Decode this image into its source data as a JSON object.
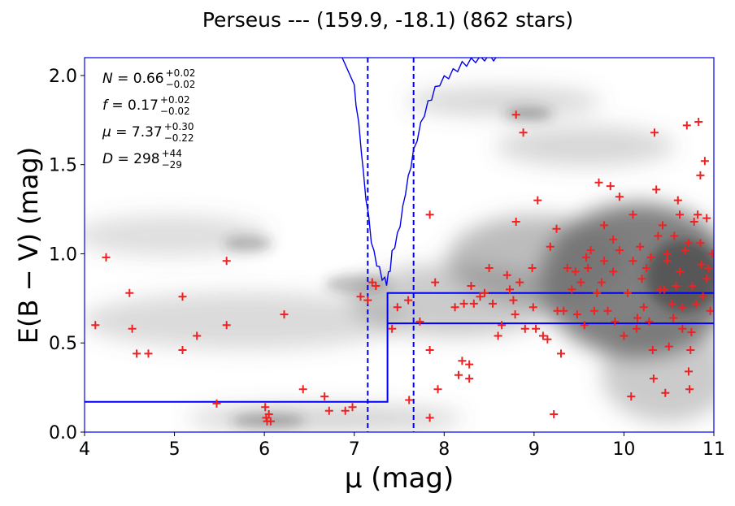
{
  "chart_data": {
    "type": "scatter",
    "title": "Perseus --- (159.9, -18.1) (862 stars)",
    "xlabel": "μ (mag)",
    "ylabel": "E(B − V) (mag)",
    "xlim": [
      4,
      11
    ],
    "ylim": [
      0,
      2.1
    ],
    "x_ticks": [
      "4",
      "5",
      "6",
      "7",
      "8",
      "9",
      "10",
      "11"
    ],
    "y_ticks": [
      "0.0",
      "0.5",
      "1.0",
      "1.5",
      "2.0"
    ],
    "annotations": [
      {
        "name": "N",
        "value": "0.66",
        "upper": "+0.02",
        "lower": "−0.02"
      },
      {
        "name": "f",
        "value": "0.17",
        "upper": "+0.02",
        "lower": "−0.02"
      },
      {
        "name": "μ",
        "value": "7.37",
        "upper": "+0.30",
        "lower": "−0.22"
      },
      {
        "name": "D",
        "value": "298",
        "upper": "+44",
        "lower": "−29"
      }
    ],
    "colors": {
      "points": "#ee2222",
      "model": "#0000ee",
      "background": "#666666"
    },
    "vertical_lines": [
      7.15,
      7.66
    ],
    "step_model": {
      "center": [
        [
          4.0,
          0.17
        ],
        [
          7.37,
          0.17
        ],
        [
          7.37,
          0.78
        ],
        [
          11.0,
          0.78
        ]
      ],
      "lower": [
        [
          7.37,
          0.61
        ],
        [
          11.0,
          0.61
        ]
      ],
      "jump_x": 7.37
    },
    "likelihood_curve": {
      "x": [
        7.0,
        7.02,
        7.05,
        7.08,
        7.1,
        7.13,
        7.16,
        7.19,
        7.22,
        7.25,
        7.28,
        7.31,
        7.34,
        7.36,
        7.38,
        7.4,
        7.42,
        7.45,
        7.48,
        7.51,
        7.54,
        7.57,
        7.6,
        7.63,
        7.66,
        7.7,
        7.74,
        7.78,
        7.82,
        7.86,
        7.9,
        7.95,
        8.0,
        8.05,
        8.1,
        8.15,
        8.2,
        8.25,
        8.3,
        8.35,
        8.4,
        8.45,
        8.5,
        8.55,
        8.6
      ],
      "y": [
        1.93,
        1.85,
        1.72,
        1.58,
        1.45,
        1.32,
        1.2,
        1.08,
        1.0,
        0.95,
        0.91,
        0.87,
        0.85,
        0.84,
        0.88,
        0.92,
        1.0,
        1.05,
        1.1,
        1.17,
        1.25,
        1.35,
        1.42,
        1.5,
        1.57,
        1.65,
        1.72,
        1.79,
        1.84,
        1.88,
        1.92,
        1.96,
        1.98,
        2.0,
        2.02,
        2.04,
        2.06,
        2.07,
        2.08,
        2.09,
        2.09,
        2.1,
        2.1,
        2.1,
        2.1
      ],
      "entry": [
        6.85,
        2.1
      ]
    },
    "points": [
      [
        4.12,
        0.6
      ],
      [
        4.24,
        0.98
      ],
      [
        4.5,
        0.78
      ],
      [
        4.53,
        0.58
      ],
      [
        4.58,
        0.44
      ],
      [
        4.71,
        0.44
      ],
      [
        5.09,
        0.76
      ],
      [
        5.09,
        0.46
      ],
      [
        5.25,
        0.54
      ],
      [
        5.47,
        0.16
      ],
      [
        5.58,
        0.96
      ],
      [
        5.58,
        0.6
      ],
      [
        6.01,
        0.14
      ],
      [
        6.02,
        0.08
      ],
      [
        6.03,
        0.06
      ],
      [
        6.05,
        0.1
      ],
      [
        6.07,
        0.06
      ],
      [
        6.22,
        0.66
      ],
      [
        6.43,
        0.24
      ],
      [
        6.67,
        0.2
      ],
      [
        6.72,
        0.12
      ],
      [
        6.9,
        0.12
      ],
      [
        6.98,
        0.14
      ],
      [
        7.07,
        0.76
      ],
      [
        7.15,
        0.74
      ],
      [
        7.2,
        0.84
      ],
      [
        7.24,
        0.82
      ],
      [
        7.42,
        0.58
      ],
      [
        7.48,
        0.7
      ],
      [
        7.6,
        0.74
      ],
      [
        7.61,
        0.18
      ],
      [
        7.73,
        0.62
      ],
      [
        7.84,
        1.22
      ],
      [
        7.84,
        0.46
      ],
      [
        7.84,
        0.08
      ],
      [
        7.9,
        0.84
      ],
      [
        7.93,
        0.24
      ],
      [
        8.12,
        0.7
      ],
      [
        8.16,
        0.32
      ],
      [
        8.2,
        0.4
      ],
      [
        8.22,
        0.72
      ],
      [
        8.28,
        0.38
      ],
      [
        8.28,
        0.3
      ],
      [
        8.3,
        0.82
      ],
      [
        8.33,
        0.72
      ],
      [
        8.4,
        0.76
      ],
      [
        8.45,
        0.78
      ],
      [
        8.5,
        0.92
      ],
      [
        8.54,
        0.72
      ],
      [
        8.6,
        0.54
      ],
      [
        8.64,
        0.6
      ],
      [
        8.7,
        0.88
      ],
      [
        8.73,
        0.8
      ],
      [
        8.77,
        0.74
      ],
      [
        8.79,
        0.66
      ],
      [
        8.8,
        1.78
      ],
      [
        8.8,
        1.18
      ],
      [
        8.84,
        0.84
      ],
      [
        8.88,
        1.68
      ],
      [
        8.9,
        0.58
      ],
      [
        8.98,
        0.92
      ],
      [
        8.99,
        0.7
      ],
      [
        9.02,
        0.58
      ],
      [
        9.04,
        1.3
      ],
      [
        9.1,
        0.54
      ],
      [
        9.15,
        0.52
      ],
      [
        9.18,
        1.04
      ],
      [
        9.22,
        0.1
      ],
      [
        9.25,
        1.14
      ],
      [
        9.26,
        0.68
      ],
      [
        9.3,
        0.44
      ],
      [
        9.33,
        0.68
      ],
      [
        9.37,
        0.92
      ],
      [
        9.42,
        0.8
      ],
      [
        9.48,
        0.66
      ],
      [
        9.52,
        0.84
      ],
      [
        9.56,
        0.6
      ],
      [
        9.6,
        0.92
      ],
      [
        9.63,
        1.02
      ],
      [
        9.67,
        0.68
      ],
      [
        9.7,
        0.78
      ],
      [
        9.72,
        1.4
      ],
      [
        9.75,
        0.84
      ],
      [
        9.78,
        0.96
      ],
      [
        9.82,
        0.68
      ],
      [
        9.85,
        1.38
      ],
      [
        9.88,
        1.08
      ],
      [
        9.9,
        0.62
      ],
      [
        9.95,
        1.32
      ],
      [
        10.0,
        0.54
      ],
      [
        10.04,
        0.78
      ],
      [
        10.08,
        0.2
      ],
      [
        10.1,
        1.22
      ],
      [
        10.14,
        0.58
      ],
      [
        10.18,
        1.04
      ],
      [
        10.22,
        0.7
      ],
      [
        10.25,
        0.92
      ],
      [
        10.28,
        0.62
      ],
      [
        10.32,
        0.46
      ],
      [
        10.33,
        0.3
      ],
      [
        10.34,
        1.68
      ],
      [
        10.36,
        1.36
      ],
      [
        10.4,
        0.8
      ],
      [
        10.43,
        1.16
      ],
      [
        10.46,
        0.22
      ],
      [
        10.48,
        0.96
      ],
      [
        10.5,
        0.48
      ],
      [
        10.53,
        0.72
      ],
      [
        10.56,
        1.1
      ],
      [
        10.58,
        0.82
      ],
      [
        10.6,
        1.3
      ],
      [
        10.62,
        0.9
      ],
      [
        10.65,
        0.58
      ],
      [
        10.68,
        1.02
      ],
      [
        10.7,
        1.72
      ],
      [
        10.72,
        0.34
      ],
      [
        10.73,
        0.24
      ],
      [
        10.74,
        0.46
      ],
      [
        10.76,
        0.82
      ],
      [
        10.78,
        1.18
      ],
      [
        10.8,
        0.72
      ],
      [
        10.83,
        1.74
      ],
      [
        10.85,
        1.44
      ],
      [
        10.86,
        0.94
      ],
      [
        10.88,
        0.76
      ],
      [
        10.9,
        1.52
      ],
      [
        10.92,
        0.86
      ],
      [
        10.94,
        0.92
      ],
      [
        10.96,
        0.68
      ],
      [
        10.98,
        1.0
      ],
      [
        10.3,
        0.98
      ],
      [
        10.2,
        0.86
      ],
      [
        9.95,
        1.02
      ],
      [
        9.58,
        0.98
      ],
      [
        9.46,
        0.9
      ],
      [
        10.1,
        0.96
      ],
      [
        10.55,
        0.64
      ],
      [
        10.65,
        0.7
      ],
      [
        10.75,
        0.56
      ],
      [
        10.85,
        1.06
      ],
      [
        9.78,
        1.16
      ],
      [
        10.38,
        1.1
      ],
      [
        10.48,
        1.0
      ],
      [
        10.62,
        1.22
      ],
      [
        10.72,
        1.06
      ],
      [
        10.82,
        1.22
      ],
      [
        10.92,
        1.2
      ],
      [
        10.45,
        0.8
      ],
      [
        10.15,
        0.64
      ],
      [
        9.88,
        0.9
      ]
    ]
  }
}
